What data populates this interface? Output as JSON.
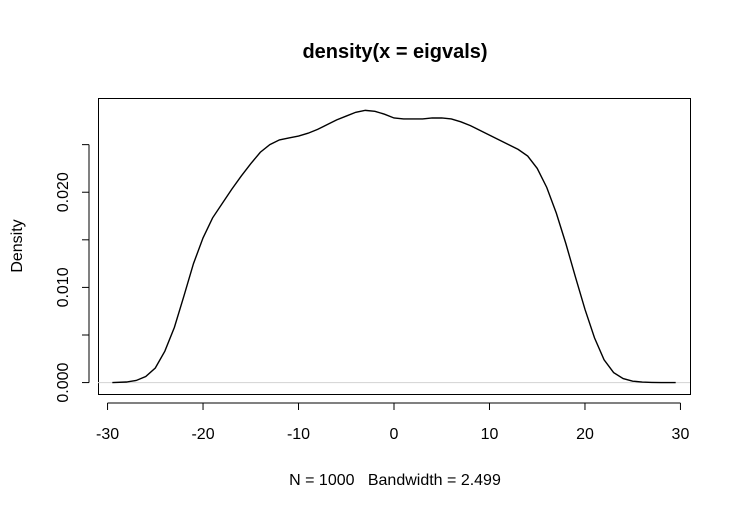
{
  "chart_data": {
    "type": "line",
    "title": "density(x = eigvals)",
    "xlabel": "N = 1000   Bandwidth = 2.499",
    "ylabel": "Density",
    "xlim": [
      -31,
      31
    ],
    "ylim": [
      -0.0012,
      0.0299
    ],
    "x_ticks": [
      -30,
      -20,
      -10,
      0,
      10,
      20,
      30
    ],
    "x_tick_labels": [
      "-30",
      "-20",
      "-10",
      "0",
      "10",
      "20",
      "30"
    ],
    "y_ticks": [
      0.0,
      0.005,
      0.01,
      0.015,
      0.02,
      0.025
    ],
    "y_tick_labels": [
      "0.000",
      "",
      "0.010",
      "",
      "0.020",
      ""
    ],
    "baseline": 0,
    "grid": false,
    "legend": "none",
    "colors": {
      "line": "#000000",
      "baseline": "#d3d3d3",
      "frame": "#000000"
    },
    "series": [
      {
        "x": [
          -29.5,
          -28,
          -27,
          -26,
          -25,
          -24,
          -23,
          -22,
          -21,
          -20,
          -19,
          -18,
          -17,
          -16,
          -15,
          -14,
          -13,
          -12,
          -11,
          -10,
          -9,
          -8,
          -7,
          -6,
          -5,
          -4,
          -3,
          -2,
          -1,
          0,
          1,
          2,
          3,
          4,
          5,
          6,
          7,
          8,
          9,
          10,
          11,
          12,
          13,
          14,
          15,
          16,
          17,
          18,
          19,
          20,
          21,
          22,
          23,
          24,
          25,
          26,
          27,
          28,
          29.5
        ],
        "y": [
          0.0,
          6e-05,
          0.00022,
          0.00063,
          0.00153,
          0.0033,
          0.0058,
          0.0091,
          0.0125,
          0.0152,
          0.0173,
          0.0188,
          0.0203,
          0.0217,
          0.023,
          0.0242,
          0.025,
          0.0255,
          0.0257,
          0.0259,
          0.0262,
          0.0266,
          0.0271,
          0.0276,
          0.028,
          0.0284,
          0.0286,
          0.0285,
          0.0282,
          0.0278,
          0.0277,
          0.0277,
          0.0277,
          0.0278,
          0.0278,
          0.0277,
          0.0274,
          0.027,
          0.0265,
          0.026,
          0.0255,
          0.025,
          0.0245,
          0.0238,
          0.0225,
          0.0205,
          0.0178,
          0.0146,
          0.0111,
          0.0077,
          0.0047,
          0.0024,
          0.00105,
          0.00042,
          0.00015,
          5e-05,
          2e-05,
          0.0,
          0.0
        ]
      }
    ]
  }
}
